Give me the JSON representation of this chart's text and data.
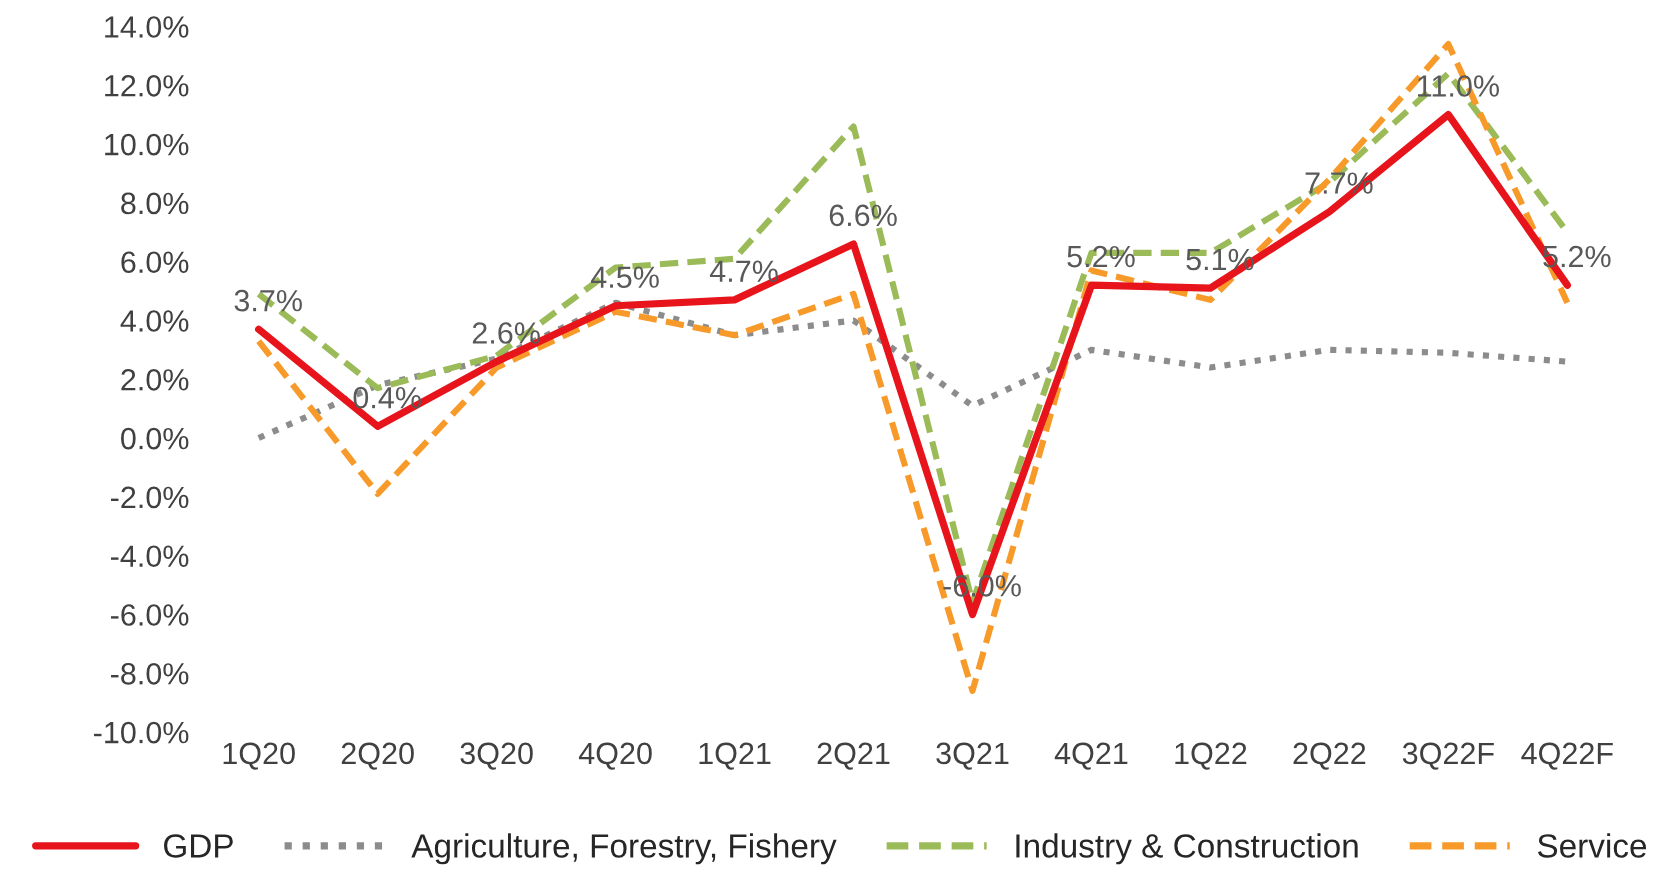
{
  "chart_data": {
    "type": "line",
    "categories": [
      "1Q20",
      "2Q20",
      "3Q20",
      "4Q20",
      "1Q21",
      "2Q21",
      "3Q21",
      "4Q21",
      "1Q22",
      "2Q22",
      "3Q22F",
      "4Q22F"
    ],
    "series": [
      {
        "name": "GDP",
        "color": "#e8141b",
        "line_style": "solid",
        "values": [
          3.7,
          0.4,
          2.6,
          4.5,
          4.7,
          6.6,
          -6.0,
          5.2,
          5.1,
          7.7,
          11.0,
          5.2
        ],
        "value_labels": [
          "3.7%",
          "0.4%",
          "2.6%",
          "4.5%",
          "4.7%",
          "6.6%",
          "-6.0%",
          "5.2%",
          "5.1%",
          "7.7%",
          "11.0%",
          "5.2%"
        ]
      },
      {
        "name": "Agriculture, Forestry, Fishery",
        "color": "#8c8c8c",
        "line_style": "dotted",
        "values": [
          0.0,
          1.8,
          2.7,
          4.6,
          3.5,
          4.0,
          1.1,
          3.0,
          2.4,
          3.0,
          2.9,
          2.6
        ]
      },
      {
        "name": "Industry & Construction",
        "color": "#9bbb59",
        "line_style": "dashed",
        "values": [
          4.9,
          1.7,
          2.8,
          5.8,
          6.1,
          10.6,
          -5.6,
          6.3,
          6.3,
          8.7,
          12.4,
          7.0
        ]
      },
      {
        "name": "Service",
        "color": "#f79a2a",
        "line_style": "dashed",
        "values": [
          3.3,
          -1.9,
          2.4,
          4.3,
          3.5,
          4.9,
          -8.6,
          5.7,
          4.7,
          8.8,
          13.4,
          4.6
        ]
      }
    ],
    "ylim": [
      -10,
      14
    ],
    "yticks": [
      {
        "value": -10,
        "label": "-10.0%"
      },
      {
        "value": -8,
        "label": "-8.0%"
      },
      {
        "value": -6,
        "label": "-6.0%"
      },
      {
        "value": -4,
        "label": "-4.0%"
      },
      {
        "value": -2,
        "label": "-2.0%"
      },
      {
        "value": 0,
        "label": "0.0%"
      },
      {
        "value": 2,
        "label": "2.0%"
      },
      {
        "value": 4,
        "label": "4.0%"
      },
      {
        "value": 6,
        "label": "6.0%"
      },
      {
        "value": 8,
        "label": "8.0%"
      },
      {
        "value": 10,
        "label": "10.0%"
      },
      {
        "value": 12,
        "label": "12.0%"
      },
      {
        "value": 14,
        "label": "14.0%"
      }
    ],
    "grid": false,
    "legend": "bottom",
    "marker": "none"
  }
}
